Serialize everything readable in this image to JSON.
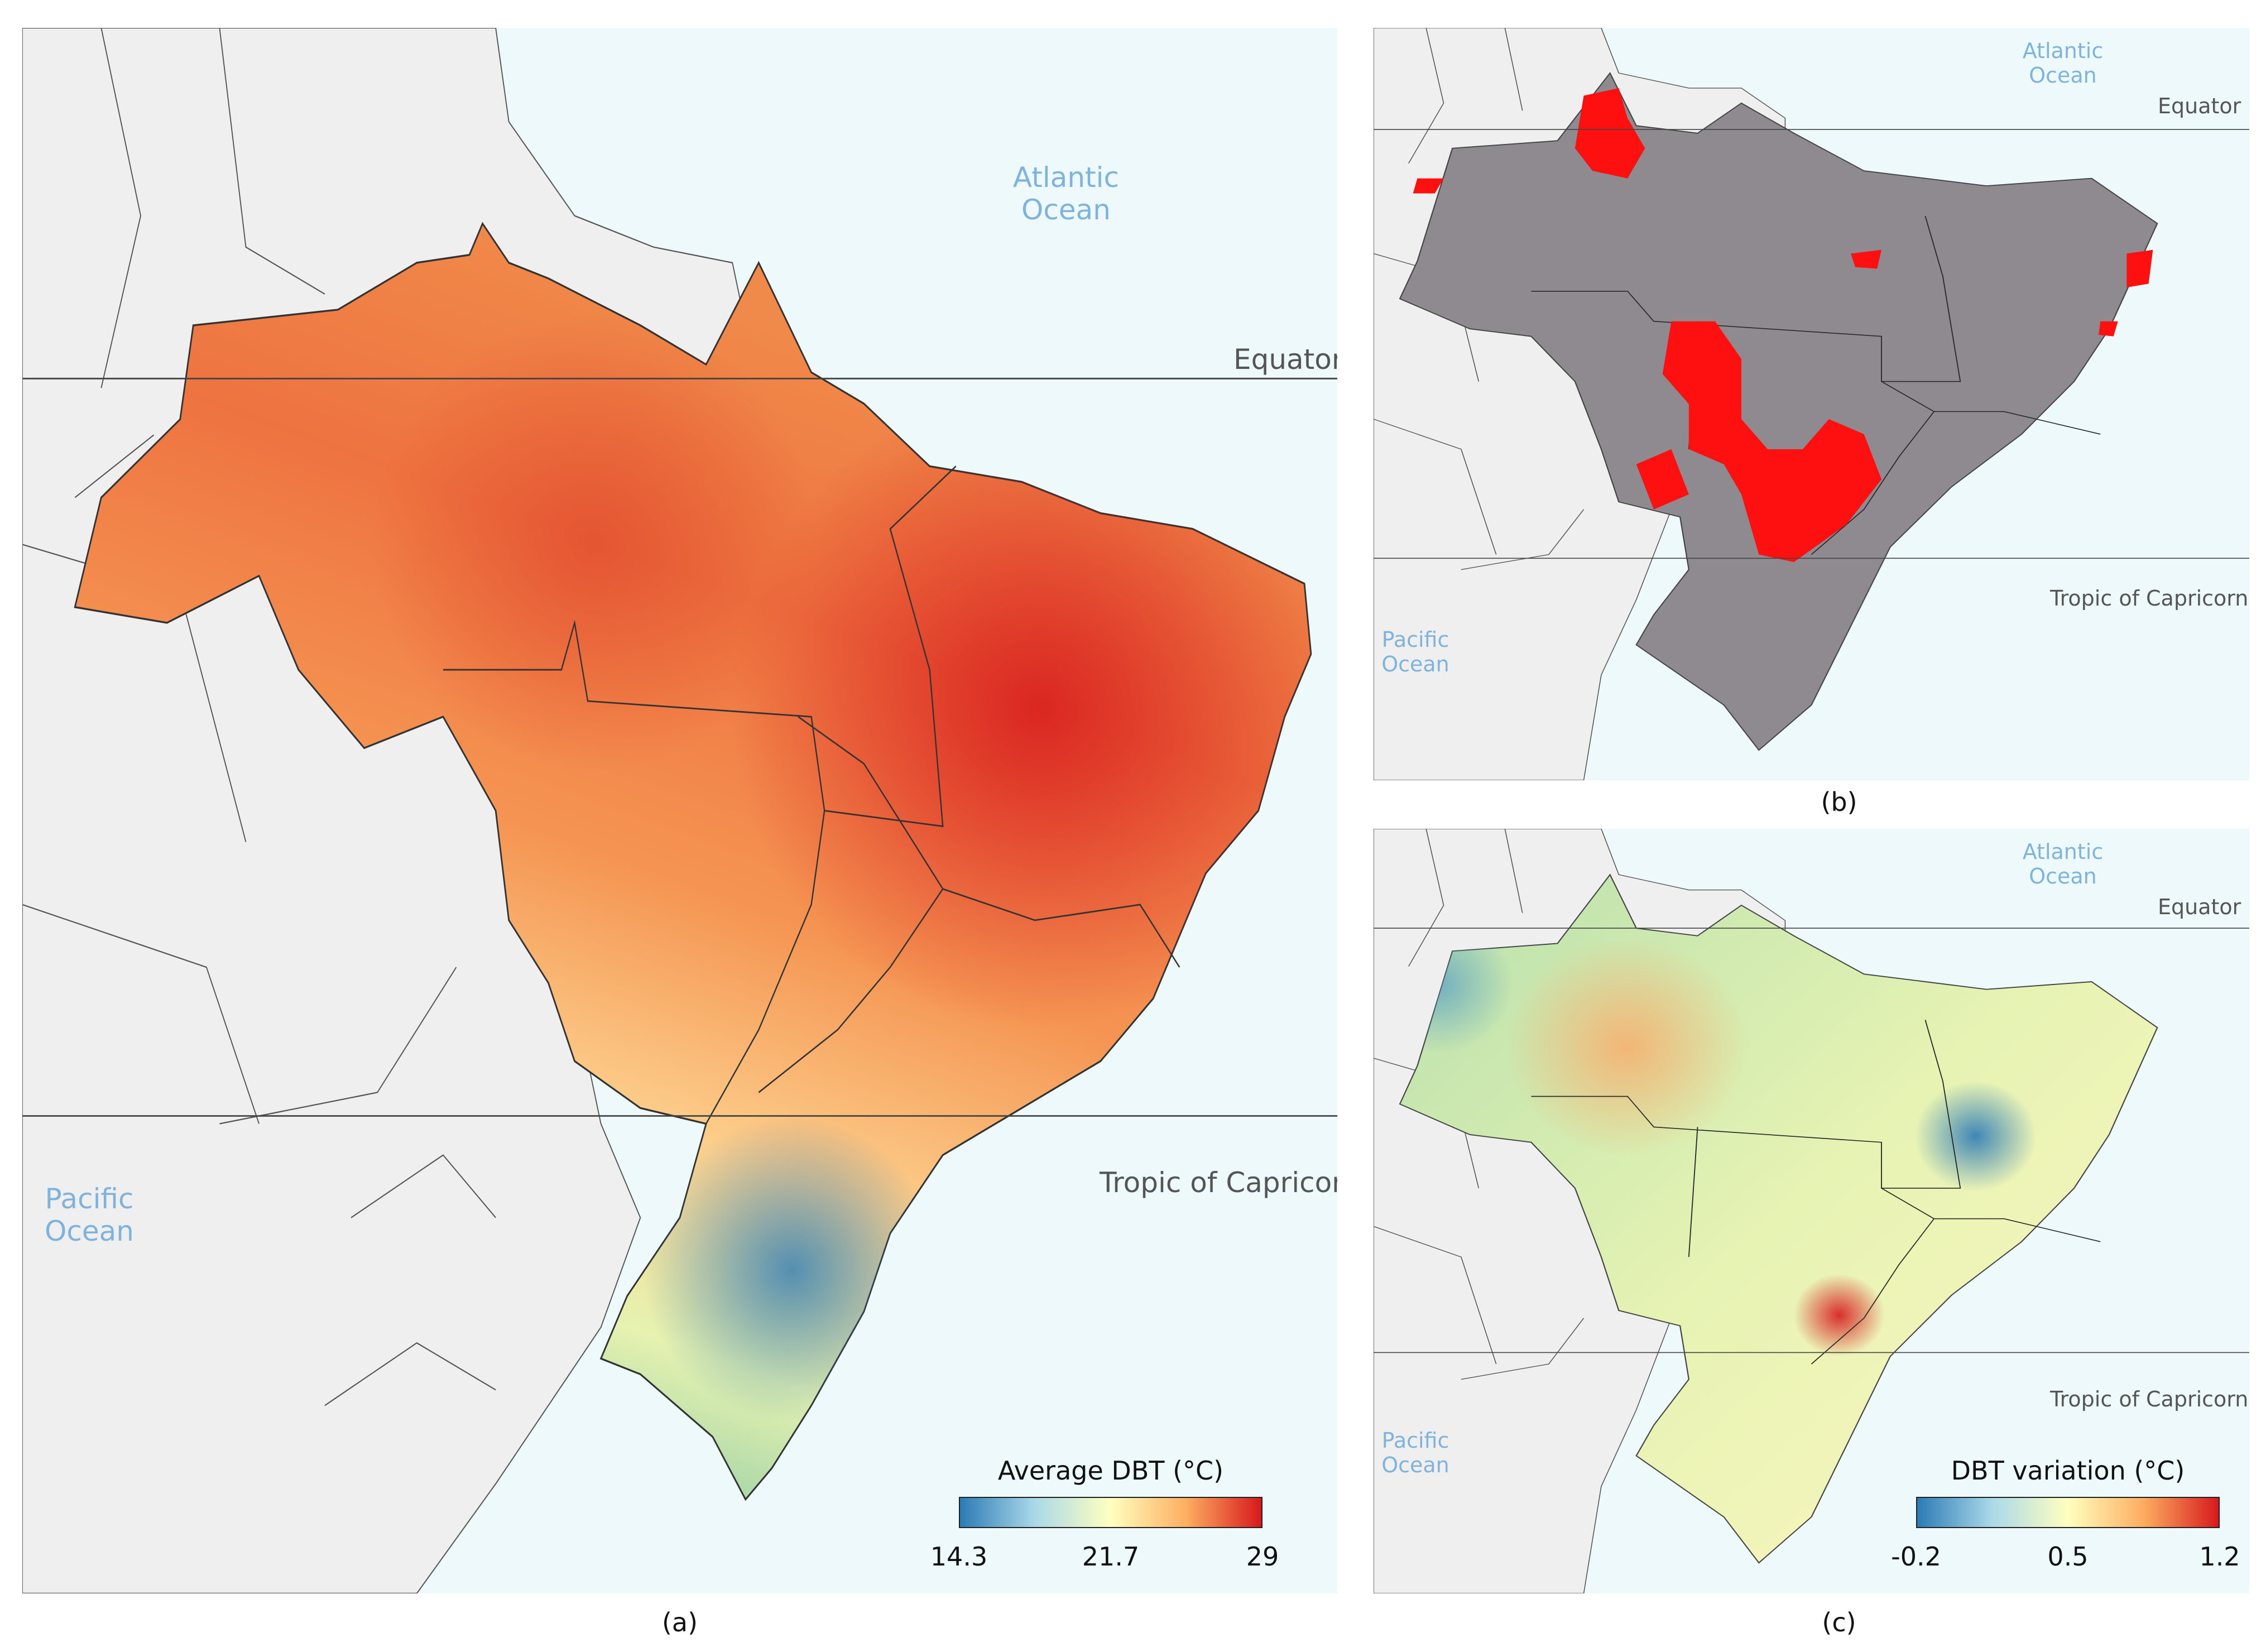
{
  "panels": {
    "a": {
      "caption": "(a)",
      "atlantic": "Atlantic Ocean",
      "pacific": "Pacific Ocean",
      "equator": "Equator",
      "tropic": "Tropic of Capricorn",
      "legend": {
        "title": "Average DBT (°C)",
        "min": "14.3",
        "mid": "21.7",
        "max": "29"
      }
    },
    "b": {
      "caption": "(b)",
      "atlantic": "Atlantic Ocean",
      "pacific": "Pacific Ocean",
      "equator": "Equator",
      "tropic": "Tropic of Capricorn"
    },
    "c": {
      "caption": "(c)",
      "atlantic": "Atlantic Ocean",
      "pacific": "Pacific Ocean",
      "equator": "Equator",
      "tropic": "Tropic of Capricorn",
      "legend": {
        "title": "DBT variation (°C)",
        "min": "-0.2",
        "mid": "0.5",
        "max": "1.2"
      }
    }
  },
  "colors": {
    "ocean": "#eef9fc",
    "land": "#efefef",
    "brazil_grey": "#8e8a8f",
    "highlight_red": "#ff1010",
    "scale_low": "#2c7bb6",
    "scale_mid": "#ffffbf",
    "scale_high": "#d7191c"
  }
}
